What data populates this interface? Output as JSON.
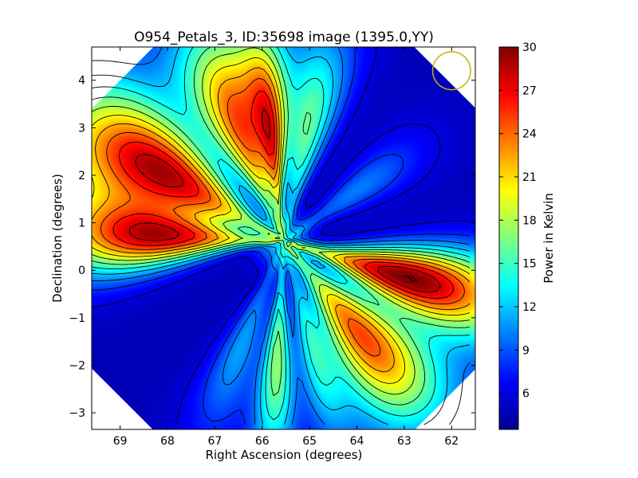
{
  "chart_data": {
    "type": "heatmap",
    "title": "O954_Petals_3, ID:35698 image (1395.0,YY)",
    "xlabel": "Right Ascension (degrees)",
    "ylabel": "Declination (degrees)",
    "xlim": [
      69.6,
      61.5
    ],
    "ylim": [
      -3.35,
      4.7
    ],
    "x_ticks": [
      "69",
      "68",
      "67",
      "66",
      "65",
      "64",
      "63",
      "62"
    ],
    "x_tick_values": [
      69,
      68,
      67,
      66,
      65,
      64,
      63,
      62
    ],
    "y_ticks": [
      "−3",
      "−2",
      "−1",
      "0",
      "1",
      "2",
      "3",
      "4"
    ],
    "y_tick_values": [
      -3,
      -2,
      -1,
      0,
      1,
      2,
      3,
      4
    ],
    "colorbar": {
      "label": "Power in Kelvin",
      "min": 3.5,
      "max": 30,
      "ticks": [
        "6",
        "9",
        "12",
        "15",
        "18",
        "21",
        "24",
        "27",
        "30"
      ],
      "tick_values": [
        6,
        9,
        12,
        15,
        18,
        21,
        24,
        27,
        30
      ],
      "colormap": "jet"
    },
    "field_center": {
      "ra": 65.55,
      "dec": 0.6
    },
    "background_level": 5,
    "petals": [
      {
        "angle_deg": 150,
        "peak": 29,
        "width": 0.22,
        "length": 5.0
      },
      {
        "angle_deg": 178,
        "peak": 27,
        "width": 0.16,
        "length": 4.5
      },
      {
        "angle_deg": 110,
        "peak": 25,
        "width": 0.18,
        "length": 4.4
      },
      {
        "angle_deg": 78,
        "peak": 16,
        "width": 0.14,
        "length": 4.2
      },
      {
        "angle_deg": 96,
        "peak": 19,
        "width": 0.09,
        "length": 4.0
      },
      {
        "angle_deg": -16,
        "peak": 30,
        "width": 0.16,
        "length": 4.6
      },
      {
        "angle_deg": -50,
        "peak": 25,
        "width": 0.2,
        "length": 4.4
      },
      {
        "angle_deg": -93,
        "peak": 17,
        "width": 0.09,
        "length": 4.3
      },
      {
        "angle_deg": -75,
        "peak": 13,
        "width": 0.1,
        "length": 4.0
      },
      {
        "angle_deg": -112,
        "peak": 11,
        "width": 0.12,
        "length": 4.0
      },
      {
        "angle_deg": 35,
        "peak": 10,
        "width": 0.14,
        "length": 3.2
      }
    ],
    "marker": {
      "type": "circle",
      "ra": 62.0,
      "dec": 4.2,
      "radius_deg": 0.4,
      "color": "#c8b400"
    },
    "grid": false
  }
}
